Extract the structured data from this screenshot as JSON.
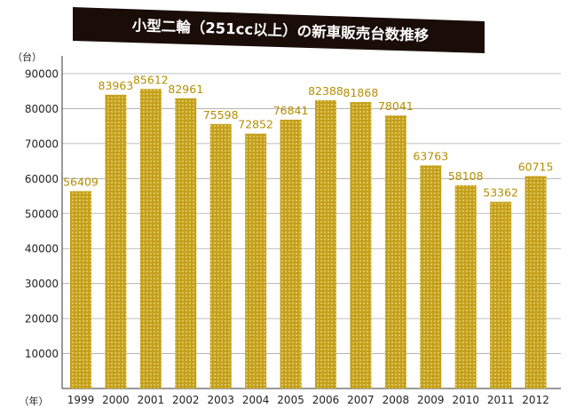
{
  "chart_data": {
    "type": "bar",
    "title": "小型二輪（251cc以上）の新車販売台数推移",
    "ylabel": "（台）",
    "xlabel": "（年）",
    "categories": [
      "1999",
      "2000",
      "2001",
      "2002",
      "2003",
      "2004",
      "2005",
      "2006",
      "2007",
      "2008",
      "2009",
      "2010",
      "2011",
      "2012"
    ],
    "values": [
      56409,
      83963,
      85612,
      82961,
      75598,
      72852,
      76841,
      82388,
      81868,
      78041,
      63763,
      58108,
      53362,
      60715
    ],
    "value_labels": [
      "56409",
      "83963",
      "85612",
      "82961",
      "75598",
      "72852",
      "76841",
      "82388",
      "81868",
      "78041",
      "63763",
      "58108",
      "53362",
      "60715"
    ],
    "ylim": [
      0,
      90000
    ],
    "yticks": [
      10000,
      20000,
      30000,
      40000,
      50000,
      60000,
      70000,
      80000,
      90000
    ],
    "ytick_labels": [
      "10000",
      "20000",
      "30000",
      "40000",
      "50000",
      "60000",
      "70000",
      "80000",
      "90000"
    ],
    "grid": true,
    "legend": "none",
    "colors": {
      "bar": "#c4a01b",
      "bar_dots": "#e7d27a",
      "label": "#b58e00",
      "grid": "#aaaaaa",
      "title_bg": "#1a0d08",
      "title_text": "#ffffff"
    }
  }
}
